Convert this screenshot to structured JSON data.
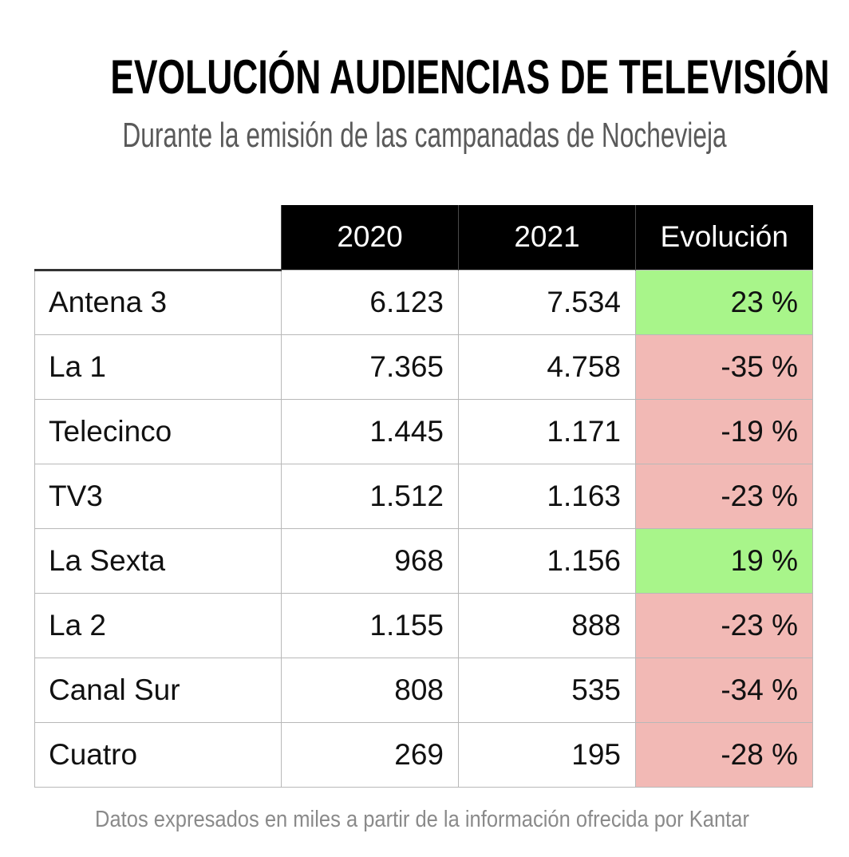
{
  "title": "EVOLUCIÓN AUDIENCIAS DE TELEVISIÓN",
  "subtitle": "Durante la emisión de las campanadas de Nochevieja",
  "footnote": "Datos expresados en miles a partir de la información ofrecida por Kantar",
  "colors": {
    "positive": "#a8f58a",
    "negative": "#f2b9b5",
    "header_bg": "#000000"
  },
  "chart_data": {
    "type": "table",
    "title": "EVOLUCIÓN AUDIENCIAS DE TELEVISIÓN",
    "subtitle": "Durante la emisión de las campanadas de Nochevieja",
    "columns": [
      "",
      "2020",
      "2021",
      "Evolución"
    ],
    "rows": [
      {
        "channel": "Antena 3",
        "y2020": "6.123",
        "y2021": "7.534",
        "evolution": "23 %",
        "evolution_value": 23
      },
      {
        "channel": "La 1",
        "y2020": "7.365",
        "y2021": "4.758",
        "evolution": "-35 %",
        "evolution_value": -35
      },
      {
        "channel": "Telecinco",
        "y2020": "1.445",
        "y2021": "1.171",
        "evolution": "-19 %",
        "evolution_value": -19
      },
      {
        "channel": "TV3",
        "y2020": "1.512",
        "y2021": "1.163",
        "evolution": "-23 %",
        "evolution_value": -23
      },
      {
        "channel": "La Sexta",
        "y2020": "968",
        "y2021": "1.156",
        "evolution": "19 %",
        "evolution_value": 19
      },
      {
        "channel": "La 2",
        "y2020": "1.155",
        "y2021": "888",
        "evolution": "-23 %",
        "evolution_value": -23
      },
      {
        "channel": "Canal Sur",
        "y2020": "808",
        "y2021": "535",
        "evolution": "-34 %",
        "evolution_value": -34
      },
      {
        "channel": "Cuatro",
        "y2020": "269",
        "y2021": "195",
        "evolution": "-28 %",
        "evolution_value": -28
      }
    ],
    "unit_note": "Datos expresados en miles a partir de la información ofrecida por Kantar"
  }
}
